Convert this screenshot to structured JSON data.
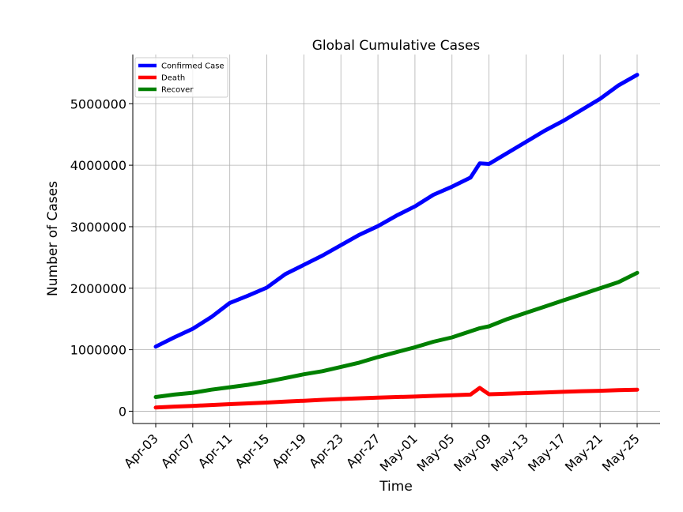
{
  "chart_data": {
    "type": "line",
    "title": "Global Cumulative Cases",
    "xlabel": "Time",
    "ylabel": "Number of Cases",
    "x_tick_labels": [
      "Apr-03",
      "Apr-07",
      "Apr-11",
      "Apr-15",
      "Apr-19",
      "Apr-23",
      "Apr-27",
      "May-01",
      "May-05",
      "May-09",
      "May-13",
      "May-17",
      "May-21",
      "May-25"
    ],
    "y_tick_labels": [
      "0",
      "1000000",
      "2000000",
      "3000000",
      "4000000",
      "5000000"
    ],
    "y_ticks": [
      0,
      1000000,
      2000000,
      3000000,
      4000000,
      5000000
    ],
    "ylim": [
      -200000,
      5800000
    ],
    "grid": true,
    "legend_position": "top-left",
    "x": [
      "Apr-03",
      "Apr-05",
      "Apr-07",
      "Apr-09",
      "Apr-11",
      "Apr-13",
      "Apr-15",
      "Apr-17",
      "Apr-19",
      "Apr-21",
      "Apr-23",
      "Apr-25",
      "Apr-27",
      "Apr-29",
      "May-01",
      "May-03",
      "May-05",
      "May-07",
      "May-08",
      "May-09",
      "May-11",
      "May-13",
      "May-15",
      "May-17",
      "May-19",
      "May-21",
      "May-23",
      "May-25"
    ],
    "series": [
      {
        "name": "Confirmed Case",
        "color": "#0000ff",
        "values": [
          1050000,
          1200000,
          1340000,
          1530000,
          1760000,
          1880000,
          2010000,
          2230000,
          2380000,
          2530000,
          2700000,
          2870000,
          3010000,
          3180000,
          3330000,
          3520000,
          3650000,
          3800000,
          4030000,
          4020000,
          4200000,
          4380000,
          4560000,
          4720000,
          4900000,
          5080000,
          5300000,
          5470000
        ]
      },
      {
        "name": "Death",
        "color": "#ff0000",
        "values": [
          60000,
          75000,
          87000,
          100000,
          115000,
          128000,
          140000,
          157000,
          170000,
          185000,
          198000,
          210000,
          220000,
          230000,
          238000,
          250000,
          260000,
          270000,
          380000,
          275000,
          285000,
          295000,
          305000,
          315000,
          325000,
          332000,
          342000,
          350000
        ]
      },
      {
        "name": "Recover",
        "color": "#008000",
        "values": [
          230000,
          270000,
          300000,
          350000,
          390000,
          430000,
          480000,
          540000,
          600000,
          650000,
          720000,
          790000,
          880000,
          960000,
          1040000,
          1130000,
          1200000,
          1300000,
          1350000,
          1380000,
          1500000,
          1600000,
          1700000,
          1800000,
          1900000,
          2000000,
          2100000,
          2250000
        ]
      }
    ]
  }
}
